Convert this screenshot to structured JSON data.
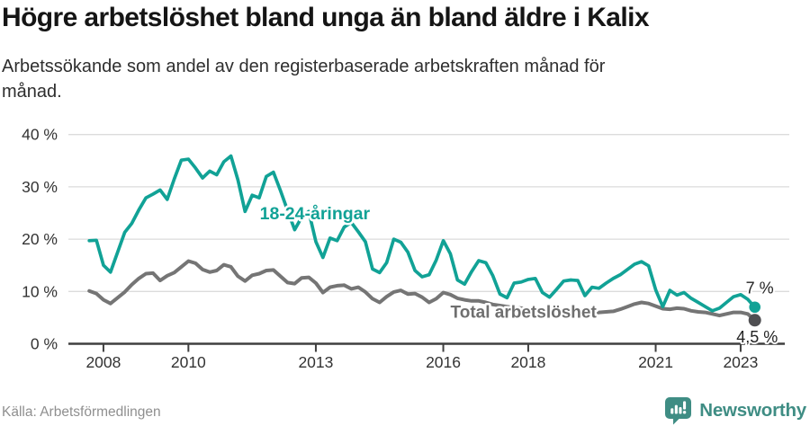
{
  "chart_data": {
    "type": "line",
    "title": "Högre arbetslöshet bland unga än bland äldre i Kalix",
    "subtitle_lines": [
      "Arbetssökande som andel av den registerbaserade arbetskraften månad för",
      "månad."
    ],
    "source": "Källa: Arbetsförmedlingen",
    "grid": true,
    "legend": "inline-labels",
    "x_axis": {
      "ticks": [
        2008,
        2010,
        2013,
        2016,
        2018,
        2021,
        2023
      ],
      "labels": [
        "2008",
        "2010",
        "2013",
        "2016",
        "2018",
        "2021",
        "2023"
      ],
      "domain": [
        2007.62,
        2023.55
      ]
    },
    "y_axis": {
      "ticks": [
        0,
        10,
        20,
        30,
        40
      ],
      "labels": [
        "0 %",
        "10 %",
        "20 %",
        "30 %",
        "40 %"
      ],
      "domain": [
        0,
        43
      ],
      "unit": "%"
    },
    "x_start": 2007.667,
    "x_step": 0.16667,
    "series": [
      {
        "id": "total",
        "name": "Total arbetslöshet",
        "color": "#757575",
        "dot_color": "#4f4f52",
        "end_label": "4,5 %",
        "end_value": 4.5,
        "values": [
          10.1,
          9.6,
          8.4,
          7.7,
          8.8,
          9.9,
          11.3,
          12.5,
          13.4,
          13.5,
          12.1,
          13.0,
          13.6,
          14.7,
          15.8,
          15.4,
          14.2,
          13.7,
          14.0,
          15.1,
          14.7,
          12.9,
          12.0,
          13.1,
          13.4,
          14.0,
          14.1,
          12.9,
          11.7,
          11.5,
          12.6,
          12.7,
          11.6,
          9.8,
          10.8,
          11.1,
          11.2,
          10.5,
          10.8,
          9.9,
          8.6,
          7.9,
          9.0,
          9.9,
          10.2,
          9.5,
          9.6,
          8.9,
          7.9,
          8.6,
          9.8,
          9.4,
          8.7,
          8.4,
          8.2,
          8.2,
          7.9,
          7.5,
          7.3,
          7.1,
          6.9,
          6.8,
          6.6,
          6.4,
          6.2,
          6.0,
          5.9,
          5.8,
          5.7,
          5.6,
          5.6,
          5.8,
          6.0,
          6.1,
          6.2,
          6.6,
          7.1,
          7.6,
          7.9,
          7.7,
          7.2,
          6.7,
          6.6,
          6.8,
          6.7,
          6.3,
          6.1,
          6.0,
          5.7,
          5.4,
          5.7,
          6.0,
          6.0,
          5.7,
          4.5
        ]
      },
      {
        "id": "youth",
        "name": "18-24-åringar",
        "color": "#11a296",
        "dot_color": "#11a296",
        "end_label": "7 %",
        "end_value": 7.0,
        "values": [
          19.7,
          19.8,
          15.0,
          13.7,
          17.5,
          21.3,
          23.0,
          25.6,
          27.9,
          28.6,
          29.4,
          27.6,
          31.5,
          35.1,
          35.3,
          33.6,
          31.7,
          33.0,
          32.3,
          34.8,
          35.9,
          31.3,
          25.3,
          28.4,
          27.9,
          32.0,
          32.8,
          29.3,
          25.5,
          21.8,
          24.2,
          25.3,
          19.5,
          16.5,
          20.2,
          19.7,
          22.3,
          23.2,
          21.4,
          19.5,
          14.3,
          13.6,
          15.5,
          20.0,
          19.4,
          17.5,
          14.0,
          12.8,
          13.2,
          16.0,
          19.7,
          17.2,
          12.2,
          11.4,
          13.8,
          15.9,
          15.5,
          13.0,
          9.5,
          8.8,
          11.6,
          11.8,
          12.3,
          12.5,
          9.8,
          8.9,
          10.4,
          12.0,
          12.2,
          12.1,
          9.2,
          10.8,
          10.6,
          11.6,
          12.5,
          13.2,
          14.2,
          15.2,
          15.7,
          14.9,
          10.3,
          7.1,
          10.2,
          9.3,
          9.8,
          8.7,
          7.9,
          7.1,
          6.3,
          6.8,
          7.9,
          9.0,
          9.4,
          8.5,
          7.0
        ]
      }
    ],
    "annotations": [
      {
        "id": "series-label-youth",
        "text": "18-24-åringar",
        "x": 2011.68,
        "y": 23.8,
        "anchor": "start"
      },
      {
        "id": "series-label-total",
        "text": "Total arbetslöshet",
        "x": 2016.17,
        "y": 5.0,
        "anchor": "start"
      },
      {
        "id": "end-label-youth",
        "text": "7 %",
        "x": 2023.12,
        "y": 9.6,
        "anchor": "start"
      },
      {
        "id": "end-label-total",
        "text": "4,5 %",
        "x": 2022.9,
        "y": 0.3,
        "anchor": "start"
      }
    ]
  },
  "footer": {
    "brand": "Newsworthy",
    "logo_icon": "newsworthy-pin-chart-icon",
    "brand_color": "#3f8d84"
  }
}
